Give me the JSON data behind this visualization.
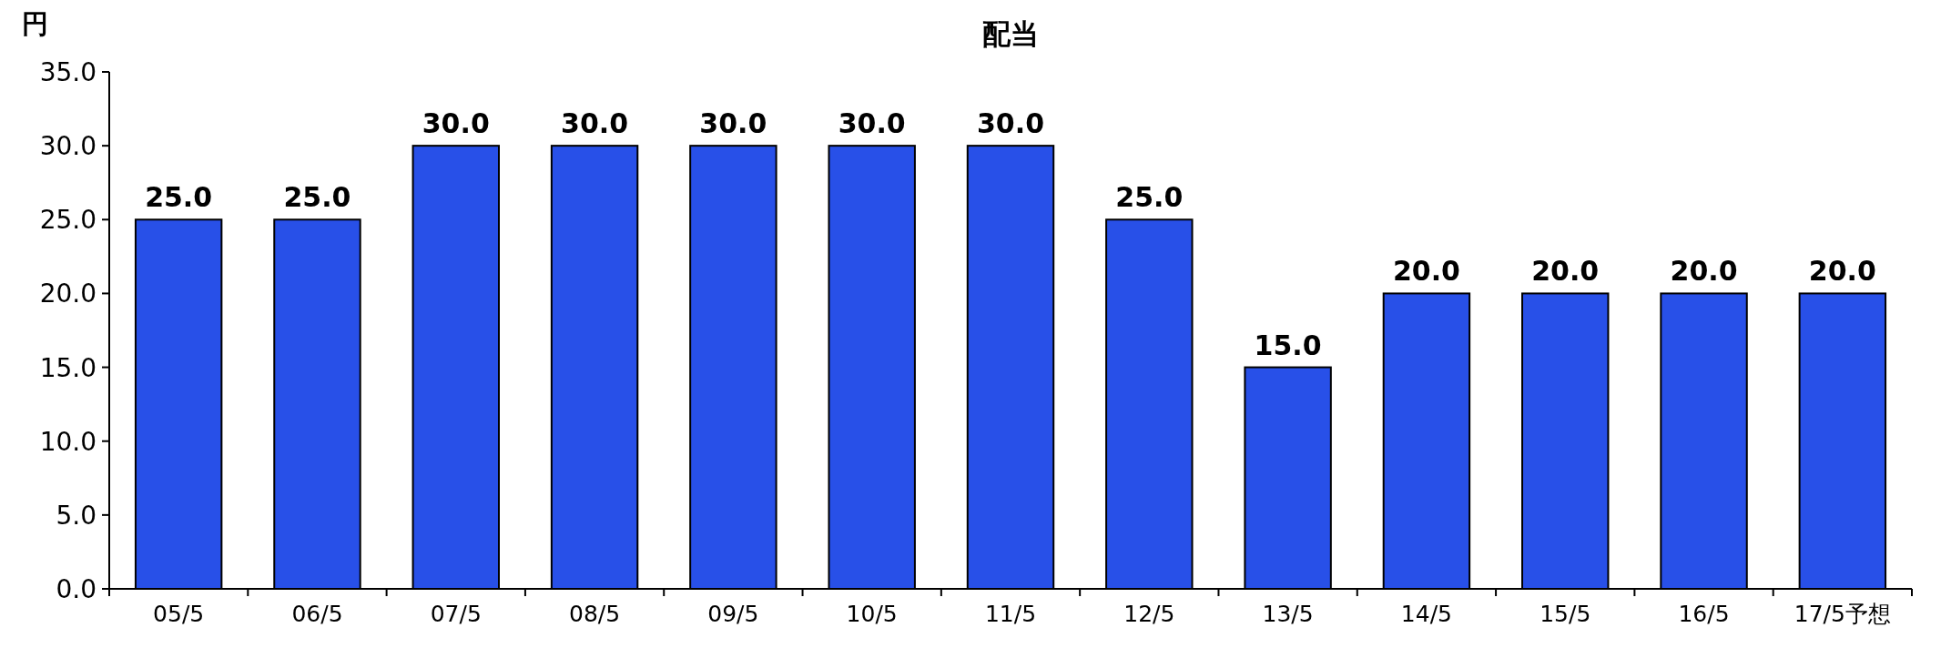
{
  "chart_data": {
    "type": "bar",
    "title": "配当",
    "ylabel": "円",
    "categories": [
      "05/5",
      "06/5",
      "07/5",
      "08/5",
      "09/5",
      "10/5",
      "11/5",
      "12/5",
      "13/5",
      "14/5",
      "15/5",
      "16/5",
      "17/5予想"
    ],
    "values": [
      25,
      25,
      30,
      30,
      30,
      30,
      30,
      25,
      15,
      20,
      20,
      20,
      20
    ],
    "value_labels": [
      "25.0",
      "25.0",
      "30.0",
      "30.0",
      "30.0",
      "30.0",
      "30.0",
      "25.0",
      "15.0",
      "20.0",
      "20.0",
      "20.0",
      "20.0"
    ],
    "color": "#2850e8",
    "ylim": [
      0,
      35
    ],
    "yticks": [
      {
        "value": 0,
        "label": "0.0"
      },
      {
        "value": 5,
        "label": "5.0"
      },
      {
        "value": 10,
        "label": "10.0"
      },
      {
        "value": 15,
        "label": "15.0"
      },
      {
        "value": 20,
        "label": "20.0"
      },
      {
        "value": 25,
        "label": "25.0"
      },
      {
        "value": 30,
        "label": "30.0"
      },
      {
        "value": 35,
        "label": "35.0"
      }
    ],
    "grid": false
  }
}
